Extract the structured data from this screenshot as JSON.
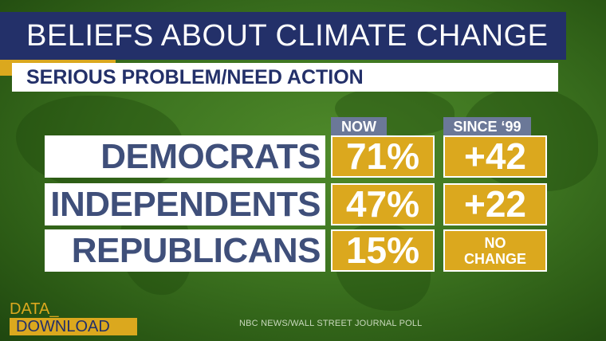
{
  "title": "BELIEFS ABOUT CLIMATE CHANGE",
  "subtitle": "SERIOUS PROBLEM/NEED ACTION",
  "columns": {
    "now": "NOW",
    "since": "SINCE ‘99"
  },
  "rows": [
    {
      "label": "DEMOCRATS",
      "now": "71%",
      "since": "+42"
    },
    {
      "label": "INDEPENDENTS",
      "now": "47%",
      "since": "+22"
    },
    {
      "label": "REPUBLICANS",
      "now": "15%",
      "since_line1": "NO",
      "since_line2": "CHANGE"
    }
  ],
  "brand": {
    "line1": "DATA_",
    "line2": "DOWNLOAD"
  },
  "source": "NBC NEWS/WALL STREET JOURNAL POLL",
  "colors": {
    "navy": "#233069",
    "gold": "#dba81e",
    "green": "#3d7420",
    "slate": "#6b7898"
  }
}
